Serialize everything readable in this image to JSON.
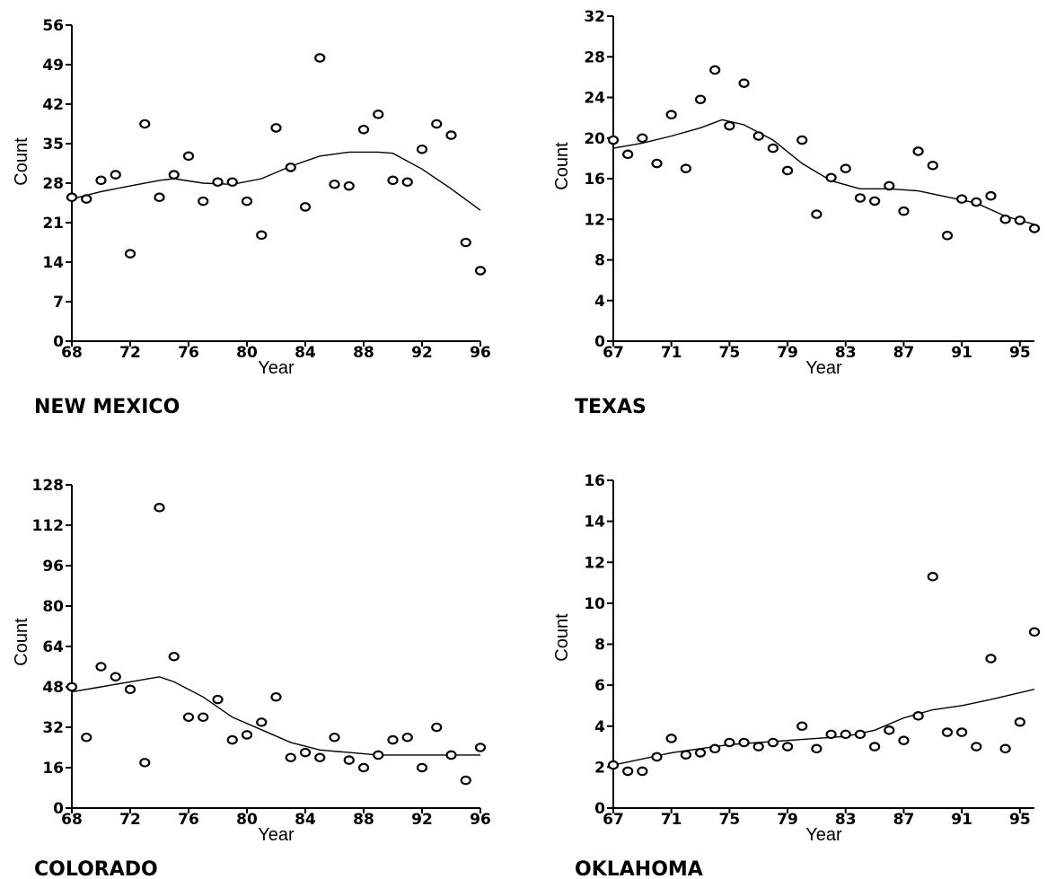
{
  "chart_data": [
    {
      "type": "scatter",
      "title": "NEW MEXICO",
      "xlabel": "Year",
      "ylabel": "Count",
      "xlim": [
        68,
        96
      ],
      "ylim": [
        0,
        56
      ],
      "xticks": [
        "68",
        "72",
        "76",
        "80",
        "84",
        "88",
        "92",
        "96"
      ],
      "yticks": [
        "0",
        "7",
        "14",
        "21",
        "28",
        "35",
        "42",
        "49",
        "56"
      ],
      "points": [
        [
          68,
          25.5
        ],
        [
          69,
          25.2
        ],
        [
          70,
          28.5
        ],
        [
          71,
          29.5
        ],
        [
          72,
          15.5
        ],
        [
          73,
          38.5
        ],
        [
          74,
          25.5
        ],
        [
          75,
          29.5
        ],
        [
          76,
          32.8
        ],
        [
          77,
          24.8
        ],
        [
          78,
          28.2
        ],
        [
          79,
          28.2
        ],
        [
          80,
          24.8
        ],
        [
          81,
          18.8
        ],
        [
          82,
          37.8
        ],
        [
          83,
          30.8
        ],
        [
          84,
          23.8
        ],
        [
          85,
          50.2
        ],
        [
          86,
          27.8
        ],
        [
          87,
          27.5
        ],
        [
          88,
          37.5
        ],
        [
          89,
          40.2
        ],
        [
          90,
          28.5
        ],
        [
          91,
          28.2
        ],
        [
          92,
          34
        ],
        [
          93,
          38.5
        ],
        [
          94,
          36.5
        ],
        [
          95,
          17.5
        ],
        [
          96,
          12.5
        ]
      ],
      "trend": [
        [
          68,
          25.2
        ],
        [
          70,
          26.5
        ],
        [
          72,
          27.5
        ],
        [
          74,
          28.5
        ],
        [
          75,
          28.8
        ],
        [
          77,
          28
        ],
        [
          79,
          27.8
        ],
        [
          81,
          28.8
        ],
        [
          83,
          31
        ],
        [
          85,
          32.8
        ],
        [
          87,
          33.5
        ],
        [
          89,
          33.5
        ],
        [
          90,
          33.3
        ],
        [
          92,
          30.5
        ],
        [
          94,
          27
        ],
        [
          96,
          23.2
        ]
      ]
    },
    {
      "type": "scatter",
      "title": "TEXAS",
      "xlabel": "Year",
      "ylabel": "Count",
      "xlim": [
        67,
        96
      ],
      "ylim": [
        0,
        32
      ],
      "xticks": [
        "67",
        "71",
        "75",
        "79",
        "83",
        "87",
        "91",
        "95"
      ],
      "yticks": [
        "0",
        "4",
        "8",
        "12",
        "16",
        "20",
        "24",
        "28",
        "32"
      ],
      "points": [
        [
          67,
          19.8
        ],
        [
          68,
          18.4
        ],
        [
          69,
          20
        ],
        [
          70,
          17.5
        ],
        [
          71,
          22.3
        ],
        [
          72,
          17
        ],
        [
          73,
          23.8
        ],
        [
          74,
          26.7
        ],
        [
          75,
          21.2
        ],
        [
          76,
          25.4
        ],
        [
          77,
          20.2
        ],
        [
          78,
          19
        ],
        [
          79,
          16.8
        ],
        [
          80,
          19.8
        ],
        [
          81,
          12.5
        ],
        [
          82,
          16.1
        ],
        [
          83,
          17
        ],
        [
          84,
          14.1
        ],
        [
          85,
          13.8
        ],
        [
          86,
          15.3
        ],
        [
          87,
          12.8
        ],
        [
          88,
          18.7
        ],
        [
          89,
          17.3
        ],
        [
          90,
          10.4
        ],
        [
          91,
          14
        ],
        [
          92,
          13.7
        ],
        [
          93,
          14.3
        ],
        [
          94,
          12
        ],
        [
          95,
          11.9
        ],
        [
          96,
          11.1
        ]
      ],
      "trend": [
        [
          67,
          19
        ],
        [
          69,
          19.5
        ],
        [
          71,
          20.2
        ],
        [
          73,
          21
        ],
        [
          74.5,
          21.8
        ],
        [
          76,
          21.3
        ],
        [
          78,
          19.8
        ],
        [
          80,
          17.5
        ],
        [
          82,
          15.8
        ],
        [
          84,
          15
        ],
        [
          86,
          15
        ],
        [
          88,
          14.8
        ],
        [
          90,
          14.2
        ],
        [
          92,
          13.6
        ],
        [
          94,
          12.3
        ],
        [
          96,
          11.5
        ]
      ]
    },
    {
      "type": "scatter",
      "title": "COLORADO",
      "xlabel": "Year",
      "ylabel": "Count",
      "xlim": [
        68,
        96
      ],
      "ylim": [
        0,
        128
      ],
      "xticks": [
        "68",
        "72",
        "76",
        "80",
        "84",
        "88",
        "92",
        "96"
      ],
      "yticks": [
        "0",
        "16",
        "32",
        "48",
        "64",
        "80",
        "96",
        "112",
        "128"
      ],
      "points": [
        [
          68,
          48
        ],
        [
          69,
          28
        ],
        [
          70,
          56
        ],
        [
          71,
          52
        ],
        [
          72,
          47
        ],
        [
          73,
          18
        ],
        [
          74,
          119
        ],
        [
          75,
          60
        ],
        [
          76,
          36
        ],
        [
          77,
          36
        ],
        [
          78,
          43
        ],
        [
          79,
          27
        ],
        [
          80,
          29
        ],
        [
          81,
          34
        ],
        [
          82,
          44
        ],
        [
          83,
          20
        ],
        [
          84,
          22
        ],
        [
          85,
          20
        ],
        [
          86,
          28
        ],
        [
          87,
          19
        ],
        [
          88,
          16
        ],
        [
          89,
          21
        ],
        [
          90,
          27
        ],
        [
          91,
          28
        ],
        [
          92,
          16
        ],
        [
          93,
          32
        ],
        [
          94,
          21
        ],
        [
          95,
          11
        ],
        [
          96,
          24
        ]
      ],
      "trend": [
        [
          68,
          46
        ],
        [
          70,
          48
        ],
        [
          72,
          50
        ],
        [
          74,
          52
        ],
        [
          75,
          50
        ],
        [
          77,
          44
        ],
        [
          79,
          36
        ],
        [
          81,
          31
        ],
        [
          83,
          26
        ],
        [
          85,
          23
        ],
        [
          87,
          22
        ],
        [
          89,
          21
        ],
        [
          92,
          21
        ],
        [
          96,
          21
        ]
      ]
    },
    {
      "type": "scatter",
      "title": "OKLAHOMA",
      "xlabel": "Year",
      "ylabel": "Count",
      "xlim": [
        67,
        96
      ],
      "ylim": [
        0,
        16
      ],
      "xticks": [
        "67",
        "71",
        "75",
        "79",
        "83",
        "87",
        "91",
        "95"
      ],
      "yticks": [
        "0",
        "2",
        "4",
        "6",
        "8",
        "10",
        "12",
        "14",
        "16"
      ],
      "points": [
        [
          67,
          2.1
        ],
        [
          68,
          1.8
        ],
        [
          69,
          1.8
        ],
        [
          70,
          2.5
        ],
        [
          71,
          3.4
        ],
        [
          72,
          2.6
        ],
        [
          73,
          2.7
        ],
        [
          74,
          2.9
        ],
        [
          75,
          3.2
        ],
        [
          76,
          3.2
        ],
        [
          77,
          3
        ],
        [
          78,
          3.2
        ],
        [
          79,
          3
        ],
        [
          80,
          4
        ],
        [
          81,
          2.9
        ],
        [
          82,
          3.6
        ],
        [
          83,
          3.6
        ],
        [
          84,
          3.6
        ],
        [
          85,
          3
        ],
        [
          86,
          3.8
        ],
        [
          87,
          3.3
        ],
        [
          88,
          4.5
        ],
        [
          89,
          11.3
        ],
        [
          90,
          3.7
        ],
        [
          91,
          3.7
        ],
        [
          92,
          3
        ],
        [
          93,
          7.3
        ],
        [
          94,
          2.9
        ],
        [
          95,
          4.2
        ],
        [
          96,
          8.6
        ]
      ],
      "trend": [
        [
          67,
          2.1
        ],
        [
          69,
          2.4
        ],
        [
          71,
          2.7
        ],
        [
          73,
          2.9
        ],
        [
          75,
          3.1
        ],
        [
          77,
          3.2
        ],
        [
          79,
          3.3
        ],
        [
          81,
          3.4
        ],
        [
          83,
          3.5
        ],
        [
          85,
          3.8
        ],
        [
          87,
          4.4
        ],
        [
          89,
          4.8
        ],
        [
          91,
          5
        ],
        [
          93,
          5.3
        ],
        [
          96,
          5.8
        ]
      ]
    }
  ]
}
